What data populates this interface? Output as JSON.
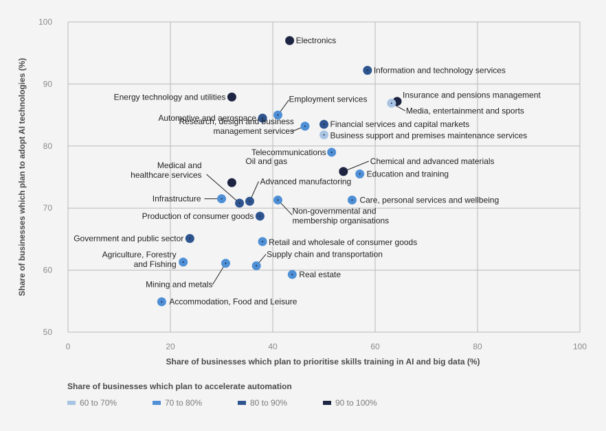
{
  "chart_data": {
    "type": "scatter",
    "xlabel": "Share of businesses which plan to prioritise skills training in AI and big data (%)",
    "ylabel": "Share of businesses which plan to adopt AI technologies (%)",
    "xlim": [
      0,
      100
    ],
    "ylim": [
      50,
      100
    ],
    "xticks": [
      0,
      20,
      40,
      60,
      80,
      100
    ],
    "yticks": [
      50,
      60,
      70,
      80,
      90,
      100
    ],
    "grid": true,
    "legend": {
      "title": "Share of businesses which plan to accelerate automation",
      "placement": "bottom",
      "entries": [
        {
          "label": "60 to 70%",
          "color": "#a9c4e2"
        },
        {
          "label": "70 to 80%",
          "color": "#4f8fd6"
        },
        {
          "label": "80 to 90%",
          "color": "#2e558f"
        },
        {
          "label": "90 to 100%",
          "color": "#1d2543"
        }
      ]
    },
    "points": [
      {
        "label": "Electronics",
        "x": 43.3,
        "y": 97.0,
        "group": 3
      },
      {
        "label": "Information and technology services",
        "x": 58.5,
        "y": 92.2,
        "group": 2
      },
      {
        "label": "Energy technology and utilities",
        "x": 32.0,
        "y": 87.9,
        "group": 3
      },
      {
        "label": "Insurance and pensions management",
        "x": 64.3,
        "y": 87.2,
        "group": 3
      },
      {
        "label": "Media, entertainment and sports",
        "x": 63.2,
        "y": 86.9,
        "group": 0
      },
      {
        "label": "Employment services",
        "x": 41.0,
        "y": 85.0,
        "group": 1
      },
      {
        "label": "Automotive and aerospace",
        "x": 38.0,
        "y": 84.5,
        "group": 2
      },
      {
        "label": "Financial services and capital markets",
        "x": 50.0,
        "y": 83.5,
        "group": 2
      },
      {
        "label": "Research, design and business management services",
        "x": 46.3,
        "y": 83.2,
        "group": 1
      },
      {
        "label": "Business support and premises maintenance services",
        "x": 50.0,
        "y": 81.8,
        "group": 0
      },
      {
        "label": "Telecommunications",
        "x": 51.5,
        "y": 79.0,
        "group": 1
      },
      {
        "label": "Chemical and advanced materials",
        "x": 53.8,
        "y": 75.9,
        "group": 3
      },
      {
        "label": "Education and training",
        "x": 57.0,
        "y": 75.5,
        "group": 1
      },
      {
        "label": "Oil and gas",
        "x": 32.0,
        "y": 74.1,
        "group": 3
      },
      {
        "label": "Medical and healthcare services",
        "x": 33.5,
        "y": 70.8,
        "group": 2
      },
      {
        "label": "Infrastructure",
        "x": 30.0,
        "y": 71.5,
        "group": 1
      },
      {
        "label": "Advanced manufactoring",
        "x": 35.5,
        "y": 71.1,
        "group": 2
      },
      {
        "label": "Non-governmental and membership organisations",
        "x": 41.0,
        "y": 71.3,
        "group": 1
      },
      {
        "label": "Care, personal services and wellbeing",
        "x": 55.5,
        "y": 71.3,
        "group": 1
      },
      {
        "label": "Production of consumer goods",
        "x": 37.5,
        "y": 68.7,
        "group": 2
      },
      {
        "label": "Government and public sector",
        "x": 23.8,
        "y": 65.1,
        "group": 2
      },
      {
        "label": "Retail and wholesale of consumer goods",
        "x": 38.0,
        "y": 64.6,
        "group": 1
      },
      {
        "label": "Agriculture, Forestry and Fishing",
        "x": 22.5,
        "y": 61.3,
        "group": 1
      },
      {
        "label": "Mining and metals",
        "x": 30.8,
        "y": 61.1,
        "group": 1
      },
      {
        "label": "Supply chain and transportation",
        "x": 36.8,
        "y": 60.7,
        "group": 1
      },
      {
        "label": "Real estate",
        "x": 43.8,
        "y": 59.3,
        "group": 1
      },
      {
        "label": "Accommodation, Food and Leisure",
        "x": 18.3,
        "y": 54.9,
        "group": 1
      }
    ]
  }
}
